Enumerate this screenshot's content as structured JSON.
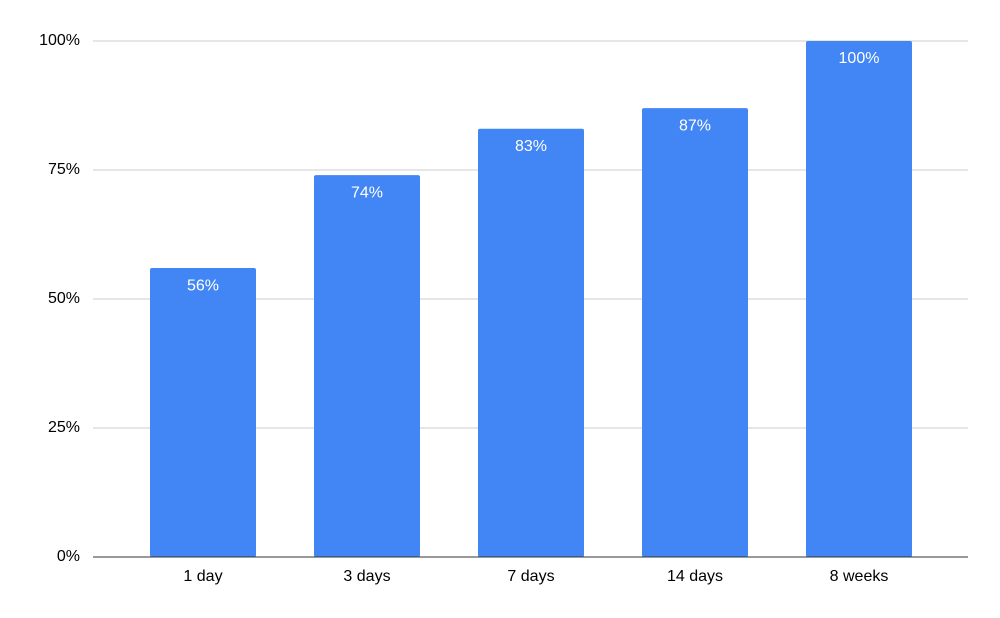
{
  "chart_data": {
    "type": "bar",
    "categories": [
      "1 day",
      "3 days",
      "7 days",
      "14 days",
      "8 weeks"
    ],
    "values": [
      56,
      74,
      83,
      87,
      100
    ],
    "value_labels": [
      "56%",
      "74%",
      "83%",
      "87%",
      "100%"
    ],
    "color": "#4285f4",
    "ylim": [
      0,
      100
    ],
    "yticks": [
      {
        "value": 0,
        "label": "0%"
      },
      {
        "value": 25,
        "label": "25%"
      },
      {
        "value": 50,
        "label": "50%"
      },
      {
        "value": 75,
        "label": "75%"
      },
      {
        "value": 100,
        "label": "100%"
      }
    ],
    "grid": true
  }
}
